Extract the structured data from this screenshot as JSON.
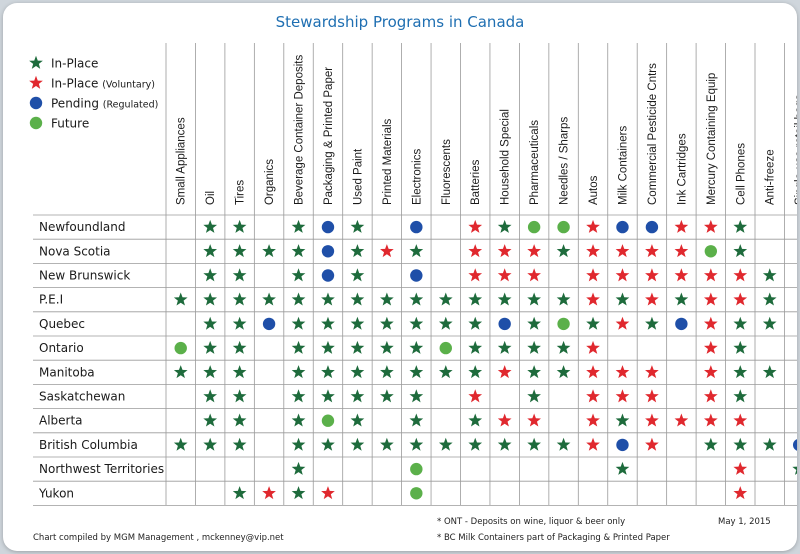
{
  "chart_data": {
    "type": "table",
    "title": "Stewardship Programs in Canada",
    "legend": [
      {
        "key": "in_place",
        "label": "In-Place",
        "suffix": "",
        "color": "#1e6b3c",
        "shape": "star"
      },
      {
        "key": "in_place_voluntary",
        "label": "In-Place",
        "suffix": "(Voluntary)",
        "color": "#e0282e",
        "shape": "star"
      },
      {
        "key": "pending",
        "label": "Pending",
        "suffix": "(Regulated)",
        "color": "#1f4fa8",
        "shape": "dot"
      },
      {
        "key": "future",
        "label": "Future",
        "suffix": "",
        "color": "#5bb04a",
        "shape": "dot"
      }
    ],
    "columns": [
      "Small Appliances",
      "Oil",
      "Tires",
      "Organics",
      "Beverage Container Deposits",
      "Packaging & Printed Paper",
      "Used Paint",
      "Printed Materials",
      "Electronics",
      "Fluorescents",
      "Batteries",
      "Household Special",
      "Pharmaceuticals",
      "Needles / Sharps",
      "Autos",
      "Milk Containers",
      "Commercial Pesticide Cntrs",
      "Ink Cartridges",
      "Mercury Containing Equip",
      "Cell Phones",
      "Anti-freeze",
      "Single-use retail bags"
    ],
    "rows": [
      {
        "name": "Newfoundland",
        "cells": [
          "",
          "G",
          "G",
          "",
          "G",
          "B",
          "G",
          "",
          "B",
          "",
          "R",
          "G",
          "L",
          "L",
          "R",
          "B",
          "B",
          "R",
          "R",
          "G",
          "",
          ""
        ]
      },
      {
        "name": "Nova Scotia",
        "cells": [
          "",
          "G",
          "G",
          "G",
          "G",
          "B",
          "G",
          "R",
          "G",
          "",
          "R",
          "R",
          "R",
          "G",
          "R",
          "R",
          "R",
          "R",
          "L",
          "G",
          "",
          ""
        ]
      },
      {
        "name": "New Brunswick",
        "cells": [
          "",
          "G",
          "G",
          "",
          "G",
          "B",
          "G",
          "",
          "B",
          "",
          "R",
          "R",
          "R",
          "",
          "R",
          "R",
          "R",
          "R",
          "R",
          "R",
          "G",
          ""
        ]
      },
      {
        "name": "P.E.I",
        "cells": [
          "G",
          "G",
          "G",
          "G",
          "G",
          "G",
          "G",
          "G",
          "G",
          "G",
          "G",
          "G",
          "G",
          "G",
          "R",
          "G",
          "R",
          "G",
          "R",
          "R",
          "G",
          ""
        ]
      },
      {
        "name": "Quebec",
        "cells": [
          "",
          "G",
          "G",
          "B",
          "G",
          "G",
          "G",
          "G",
          "G",
          "G",
          "G",
          "B",
          "G",
          "L",
          "G",
          "R",
          "G",
          "B",
          "R",
          "G",
          "G",
          ""
        ]
      },
      {
        "name": "Ontario",
        "cells": [
          "L",
          "G",
          "G",
          "",
          "G",
          "G",
          "G",
          "G",
          "G",
          "L",
          "G",
          "G",
          "G",
          "G",
          "R",
          "",
          "",
          "",
          "R",
          "G",
          "",
          ""
        ]
      },
      {
        "name": "Manitoba",
        "cells": [
          "G",
          "G",
          "G",
          "",
          "G",
          "G",
          "G",
          "G",
          "G",
          "G",
          "G",
          "R",
          "G",
          "G",
          "R",
          "R",
          "R",
          "",
          "R",
          "G",
          "G",
          ""
        ]
      },
      {
        "name": "Saskatchewan",
        "cells": [
          "",
          "G",
          "G",
          "",
          "G",
          "G",
          "G",
          "G",
          "G",
          "",
          "R",
          "",
          "G",
          "",
          "R",
          "R",
          "R",
          "",
          "R",
          "G",
          "",
          ""
        ]
      },
      {
        "name": "Alberta",
        "cells": [
          "",
          "G",
          "G",
          "",
          "G",
          "L",
          "G",
          "",
          "G",
          "",
          "G",
          "R",
          "R",
          "",
          "R",
          "G",
          "R",
          "R",
          "R",
          "R",
          "",
          ""
        ]
      },
      {
        "name": "British Columbia",
        "cells": [
          "G",
          "G",
          "G",
          "",
          "G",
          "G",
          "G",
          "G",
          "G",
          "G",
          "G",
          "G",
          "G",
          "G",
          "R",
          "B",
          "R",
          "",
          "G",
          "G",
          "G",
          "B"
        ]
      },
      {
        "name": "Northwest Territories",
        "cells": [
          "",
          "",
          "",
          "",
          "G",
          "",
          "",
          "",
          "L",
          "",
          "",
          "",
          "",
          "",
          "",
          "G",
          "",
          "",
          "",
          "R",
          "",
          "G"
        ]
      },
      {
        "name": "Yukon",
        "cells": [
          "",
          "",
          "G",
          "R",
          "G",
          "R",
          "",
          "",
          "L",
          "",
          "",
          "",
          "",
          "",
          "",
          "",
          "",
          "",
          "",
          "R",
          "",
          ""
        ]
      }
    ],
    "grid": true
  },
  "footer": {
    "credit": "Chart compiled by MGM Management , mckenney@vip.net",
    "note1": "* ONT - Deposits on wine, liquor & beer only",
    "note2": "* BC Milk Containers part of Packaging & Printed Paper",
    "date": "May 1, 2015"
  }
}
